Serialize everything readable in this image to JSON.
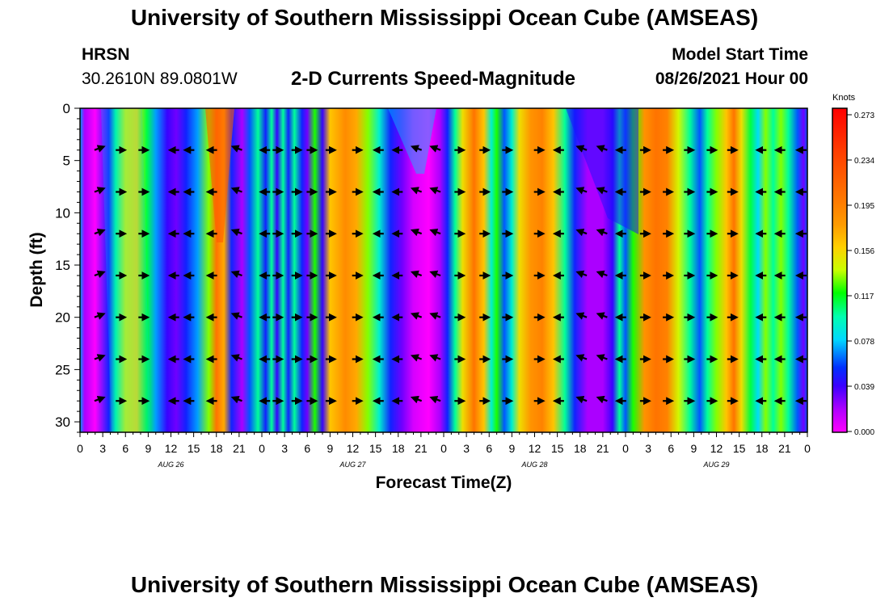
{
  "page": {
    "title_top": "University of Southern Mississippi Ocean Cube (AMSEAS)",
    "title_bottom": "University of Southern Mississippi Ocean Cube (AMSEAS)",
    "station": "HRSN",
    "location": "30.2610N  89.0801W",
    "plot_title": "2-D Currents Speed-Magnitude",
    "model_label": "Model Start Time",
    "model_time": "08/26/2021 Hour 00"
  },
  "chart_data": {
    "type": "heatmap",
    "title": "2-D Currents Speed-Magnitude",
    "xlabel": "Forecast Time(Z)",
    "ylabel": "Depth (ft)",
    "x_range_hours": [
      0,
      96
    ],
    "ylim": [
      0,
      31
    ],
    "y_inverted": true,
    "x_tick_labels": [
      "0",
      "3",
      "6",
      "9",
      "12",
      "15",
      "18",
      "21",
      "0",
      "3",
      "6",
      "9",
      "12",
      "15",
      "18",
      "21",
      "0",
      "3",
      "6",
      "9",
      "12",
      "15",
      "18",
      "21",
      "0",
      "3",
      "6",
      "9",
      "12",
      "15",
      "18",
      "21",
      "0"
    ],
    "y_ticks": [
      0,
      5,
      10,
      15,
      20,
      25,
      30
    ],
    "day_labels": [
      {
        "hour": 12,
        "label": "AUG 26"
      },
      {
        "hour": 36,
        "label": "AUG 27"
      },
      {
        "hour": 60,
        "label": "AUG 28"
      },
      {
        "hour": 84,
        "label": "AUG 29"
      }
    ],
    "colorbar": {
      "unit": "Knots",
      "ticks": [
        "0.273",
        "0.234",
        "0.195",
        "0.156",
        "0.117",
        "0.078",
        "0.039",
        "0.000"
      ],
      "min": 0.0,
      "max": 0.273
    },
    "arrow_depths": [
      4,
      8,
      12,
      16,
      20,
      24,
      28
    ],
    "arrow_hours": [
      2.5,
      5.3,
      8.3,
      12.5,
      14.5,
      17.5,
      20.8,
      24.5,
      26,
      28.5,
      30.5,
      33,
      36.5,
      39.5,
      42,
      44.5,
      47,
      50,
      53.3,
      56.3,
      60.5,
      63.3,
      66.3,
      69,
      71.5,
      74.5,
      77.5,
      80.3,
      83.3,
      86,
      90,
      92.5,
      95.3
    ],
    "speed_profile": [
      {
        "hour": 0,
        "speed": 0.07
      },
      {
        "hour": 0.6,
        "speed": 0.02
      },
      {
        "hour": 2,
        "speed": 0.0
      },
      {
        "hour": 3.8,
        "speed": 0.05
      },
      {
        "hour": 4.7,
        "speed": 0.1
      },
      {
        "hour": 6,
        "speed": 0.14
      },
      {
        "hour": 7.5,
        "speed": 0.15
      },
      {
        "hour": 8.8,
        "speed": 0.11
      },
      {
        "hour": 10,
        "speed": 0.07
      },
      {
        "hour": 11.5,
        "speed": 0.04
      },
      {
        "hour": 12.7,
        "speed": 0.03
      },
      {
        "hour": 14,
        "speed": 0.05
      },
      {
        "hour": 15.5,
        "speed": 0.07
      },
      {
        "hour": 17,
        "speed": 0.13
      },
      {
        "hour": 18,
        "speed": 0.2
      },
      {
        "hour": 19,
        "speed": 0.17
      },
      {
        "hour": 20,
        "speed": 0.05
      },
      {
        "hour": 21.4,
        "speed": 0.02
      },
      {
        "hour": 22.4,
        "speed": 0.06
      },
      {
        "hour": 23.5,
        "speed": 0.1
      },
      {
        "hour": 24.5,
        "speed": 0.05
      },
      {
        "hour": 25.3,
        "speed": 0.1
      },
      {
        "hour": 26,
        "speed": 0.04
      },
      {
        "hour": 26.8,
        "speed": 0.1
      },
      {
        "hour": 27.5,
        "speed": 0.05
      },
      {
        "hour": 28.3,
        "speed": 0.1
      },
      {
        "hour": 29.3,
        "speed": 0.05
      },
      {
        "hour": 30,
        "speed": 0.03
      },
      {
        "hour": 31,
        "speed": 0.12
      },
      {
        "hour": 32,
        "speed": 0.04
      },
      {
        "hour": 33,
        "speed": 0.16
      },
      {
        "hour": 35,
        "speed": 0.185
      },
      {
        "hour": 36.5,
        "speed": 0.17
      },
      {
        "hour": 38,
        "speed": 0.13
      },
      {
        "hour": 39.5,
        "speed": 0.09
      },
      {
        "hour": 41,
        "speed": 0.05
      },
      {
        "hour": 42.5,
        "speed": 0.03
      },
      {
        "hour": 44,
        "speed": 0.01
      },
      {
        "hour": 46,
        "speed": 0.0
      },
      {
        "hour": 47.5,
        "speed": 0.02
      },
      {
        "hour": 48.5,
        "speed": 0.05
      },
      {
        "hour": 49.5,
        "speed": 0.1
      },
      {
        "hour": 50.5,
        "speed": 0.15
      },
      {
        "hour": 52,
        "speed": 0.2
      },
      {
        "hour": 53.3,
        "speed": 0.16
      },
      {
        "hour": 54.3,
        "speed": 0.09
      },
      {
        "hour": 55,
        "speed": 0.12
      },
      {
        "hour": 56,
        "speed": 0.06
      },
      {
        "hour": 57,
        "speed": 0.09
      },
      {
        "hour": 58,
        "speed": 0.15
      },
      {
        "hour": 59.5,
        "speed": 0.18
      },
      {
        "hour": 61,
        "speed": 0.19
      },
      {
        "hour": 62.5,
        "speed": 0.16
      },
      {
        "hour": 64,
        "speed": 0.1
      },
      {
        "hour": 65.3,
        "speed": 0.05
      },
      {
        "hour": 67,
        "speed": 0.02
      },
      {
        "hour": 69,
        "speed": 0.02
      },
      {
        "hour": 70.3,
        "speed": 0.04
      },
      {
        "hour": 71.2,
        "speed": 0.1
      },
      {
        "hour": 72,
        "speed": 0.06
      },
      {
        "hour": 73,
        "speed": 0.12
      },
      {
        "hour": 74.5,
        "speed": 0.18
      },
      {
        "hour": 76,
        "speed": 0.2
      },
      {
        "hour": 77.5,
        "speed": 0.19
      },
      {
        "hour": 79,
        "speed": 0.14
      },
      {
        "hour": 80.5,
        "speed": 0.1
      },
      {
        "hour": 81.8,
        "speed": 0.06
      },
      {
        "hour": 82.8,
        "speed": 0.1
      },
      {
        "hour": 84,
        "speed": 0.13
      },
      {
        "hour": 85.3,
        "speed": 0.16
      },
      {
        "hour": 86.3,
        "speed": 0.2
      },
      {
        "hour": 87.3,
        "speed": 0.15
      },
      {
        "hour": 88.5,
        "speed": 0.11
      },
      {
        "hour": 89.5,
        "speed": 0.08
      },
      {
        "hour": 90.5,
        "speed": 0.13
      },
      {
        "hour": 91.5,
        "speed": 0.1
      },
      {
        "hour": 92.5,
        "speed": 0.13
      },
      {
        "hour": 93.5,
        "speed": 0.1
      },
      {
        "hour": 94.7,
        "speed": 0.06
      },
      {
        "hour": 95.5,
        "speed": 0.03
      },
      {
        "hour": 96,
        "speed": 0.06
      }
    ]
  }
}
